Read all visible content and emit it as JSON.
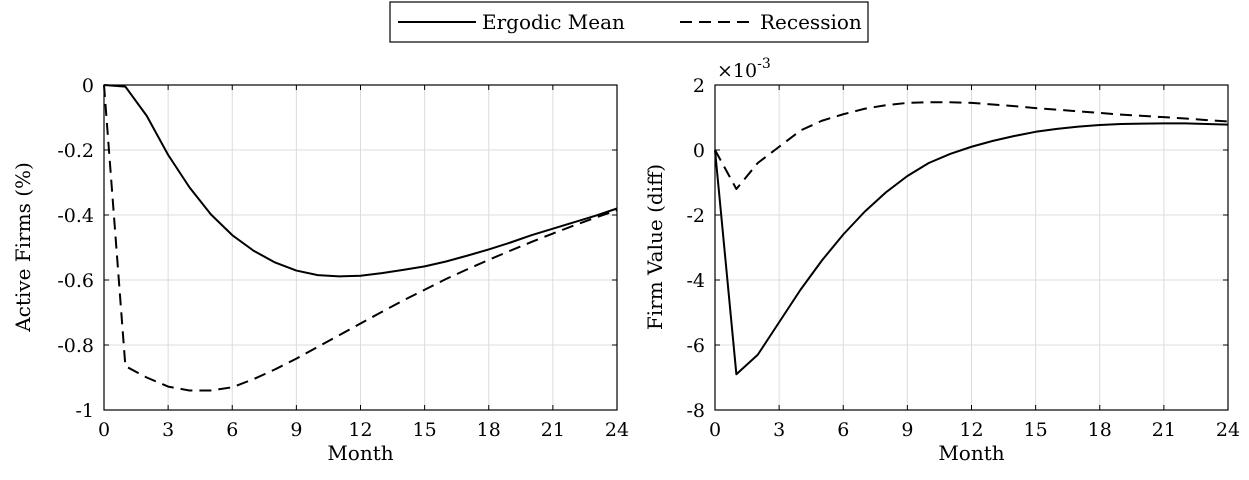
{
  "legend": {
    "placement": "top-center",
    "entries": [
      {
        "label": "Ergodic Mean",
        "style": "solid"
      },
      {
        "label": "Recession",
        "style": "dashed"
      }
    ]
  },
  "chart_data": [
    {
      "type": "line",
      "title": "",
      "xlabel": "Month",
      "ylabel": "Active Firms (%)",
      "xlim": [
        0,
        24
      ],
      "ylim": [
        -1,
        0
      ],
      "xticks": [
        0,
        3,
        6,
        9,
        12,
        15,
        18,
        21,
        24
      ],
      "yticks": [
        0,
        -0.2,
        -0.4,
        -0.6,
        -0.8,
        -1
      ],
      "ytick_labels": [
        "0",
        "-0.2",
        "-0.4",
        "-0.6",
        "-0.8",
        "-1"
      ],
      "grid": true,
      "x": [
        0,
        1,
        2,
        3,
        4,
        5,
        6,
        7,
        8,
        9,
        10,
        11,
        12,
        13,
        14,
        15,
        16,
        17,
        18,
        19,
        20,
        21,
        22,
        23,
        24
      ],
      "series": [
        {
          "name": "Ergodic Mean",
          "style": "solid",
          "values": [
            0,
            -0.005,
            -0.095,
            -0.215,
            -0.315,
            -0.398,
            -0.462,
            -0.51,
            -0.546,
            -0.571,
            -0.585,
            -0.589,
            -0.587,
            -0.579,
            -0.569,
            -0.558,
            -0.543,
            -0.525,
            -0.506,
            -0.485,
            -0.462,
            -0.442,
            -0.422,
            -0.402,
            -0.38
          ]
        },
        {
          "name": "Recession",
          "style": "dashed",
          "values": [
            0,
            -0.865,
            -0.9,
            -0.928,
            -0.94,
            -0.94,
            -0.93,
            -0.905,
            -0.875,
            -0.842,
            -0.806,
            -0.77,
            -0.734,
            -0.698,
            -0.663,
            -0.63,
            -0.597,
            -0.567,
            -0.538,
            -0.51,
            -0.483,
            -0.457,
            -0.432,
            -0.408,
            -0.385
          ]
        }
      ]
    },
    {
      "type": "line",
      "title": "",
      "xlabel": "Month",
      "ylabel": "Firm Value (diff)",
      "exponent_label": "×10",
      "exponent_power": "-3",
      "xlim": [
        0,
        24
      ],
      "ylim": [
        -8,
        2
      ],
      "xticks": [
        0,
        3,
        6,
        9,
        12,
        15,
        18,
        21,
        24
      ],
      "yticks": [
        2,
        0,
        -2,
        -4,
        -6,
        -8
      ],
      "ytick_labels": [
        "2",
        "0",
        "-2",
        "-4",
        "-6",
        "-8"
      ],
      "grid": true,
      "x": [
        0,
        1,
        2,
        3,
        4,
        5,
        6,
        7,
        8,
        9,
        10,
        11,
        12,
        13,
        14,
        15,
        16,
        17,
        18,
        19,
        20,
        21,
        22,
        23,
        24
      ],
      "series": [
        {
          "name": "Ergodic Mean",
          "style": "solid",
          "values": [
            0,
            -6.9,
            -6.3,
            -5.3,
            -4.3,
            -3.4,
            -2.6,
            -1.9,
            -1.3,
            -0.8,
            -0.4,
            -0.12,
            0.1,
            0.28,
            0.43,
            0.56,
            0.65,
            0.72,
            0.77,
            0.8,
            0.81,
            0.82,
            0.82,
            0.8,
            0.78
          ]
        },
        {
          "name": "Recession",
          "style": "dashed",
          "values": [
            0,
            -1.2,
            -0.4,
            0.1,
            0.6,
            0.9,
            1.1,
            1.27,
            1.38,
            1.45,
            1.47,
            1.47,
            1.45,
            1.4,
            1.35,
            1.29,
            1.24,
            1.19,
            1.14,
            1.09,
            1.05,
            1.01,
            0.97,
            0.92,
            0.88
          ]
        }
      ]
    }
  ]
}
